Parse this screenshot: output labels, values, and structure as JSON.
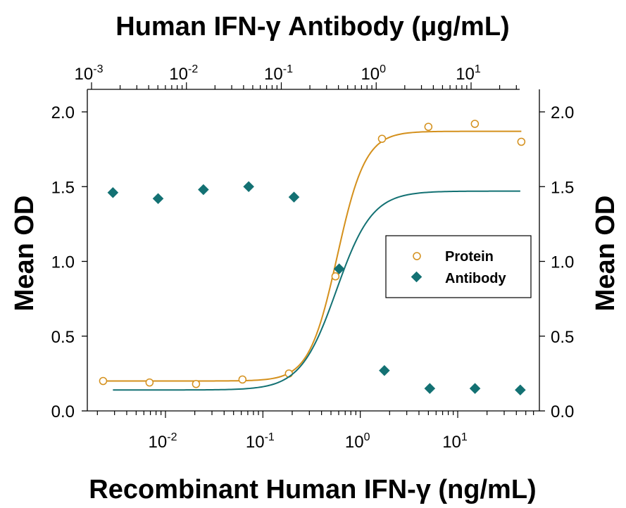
{
  "chart_data": {
    "type": "scatter",
    "title": "Human IFN-γ Antibody (μg/mL)",
    "xlabel": "Recombinant Human IFN-γ (ng/mL)",
    "ylabel_left": "Mean OD",
    "ylabel_right": "Mean OD",
    "xscale": "log",
    "xlim": [
      0.0015,
      80
    ],
    "ylim": [
      0,
      2.0
    ],
    "yticks": [
      0.0,
      0.5,
      1.0,
      1.5,
      2.0
    ],
    "ytick_labels": [
      "0.0",
      "0.5",
      "1.0",
      "1.5",
      "2.0"
    ],
    "bottom_ticks": [
      {
        "base": "10",
        "exp": "-2",
        "value": 0.01
      },
      {
        "base": "10",
        "exp": "-1",
        "value": 0.1
      },
      {
        "base": "10",
        "exp": "0",
        "value": 1
      },
      {
        "base": "10",
        "exp": "1",
        "value": 10
      }
    ],
    "top_axis": {
      "label": "Human IFN-γ Antibody (μg/mL)",
      "ticks": [
        {
          "base": "10",
          "exp": "-3",
          "value": 0.001
        },
        {
          "base": "10",
          "exp": "-2",
          "value": 0.01
        },
        {
          "base": "10",
          "exp": "-1",
          "value": 0.1
        },
        {
          "base": "10",
          "exp": "0",
          "value": 1
        },
        {
          "base": "10",
          "exp": "1",
          "value": 10
        }
      ]
    },
    "series": [
      {
        "name": "Protein",
        "marker": "open-circle",
        "color": "#d4901c",
        "axis": "bottom",
        "x": [
          0.00229,
          0.00686,
          0.0206,
          0.0617,
          0.185,
          0.556,
          1.67,
          5.0,
          15.0,
          45.0
        ],
        "y": [
          0.2,
          0.19,
          0.18,
          0.21,
          0.25,
          0.9,
          1.82,
          1.9,
          1.92,
          1.8
        ],
        "fit": {
          "bottom": 0.2,
          "top": 1.87,
          "ec50": 0.58,
          "hill": 3.0
        }
      },
      {
        "name": "Antibody",
        "marker": "filled-diamond",
        "color": "#137173",
        "axis": "top",
        "x": [
          0.00168,
          0.00503,
          0.0151,
          0.0453,
          0.136,
          0.407,
          1.22,
          3.67,
          11.0,
          33.0
        ],
        "y": [
          1.46,
          1.42,
          1.48,
          1.5,
          1.43,
          0.95,
          0.27,
          0.15,
          0.15,
          0.14
        ],
        "fit": {
          "bottom": 0.14,
          "top": 1.47,
          "ec50": 0.38,
          "hill": 2.3
        }
      }
    ],
    "legend": {
      "position": "right-center",
      "entries": [
        "Protein",
        "Antibody"
      ]
    },
    "grid": false
  }
}
